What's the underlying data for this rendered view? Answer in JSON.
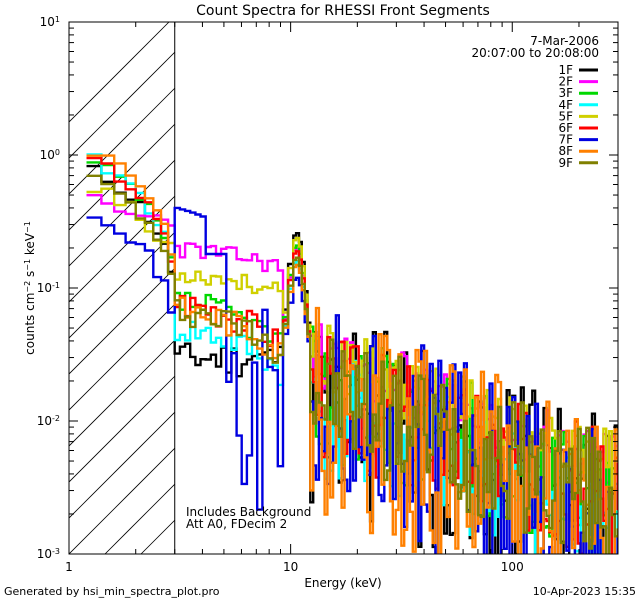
{
  "chart_data": {
    "type": "line",
    "title": "Count Spectra for RHESSI Front Segments",
    "xlabel": "Energy (keV)",
    "ylabel_html": "counts cm⁻² s⁻¹ keV⁻¹",
    "xlim": [
      1,
      300
    ],
    "ylim": [
      0.001,
      10
    ],
    "xscale": "log",
    "yscale": "log",
    "x_ticks": [
      {
        "v": 1,
        "label": "1"
      },
      {
        "v": 10,
        "label": "10"
      },
      {
        "v": 100,
        "label": "100"
      }
    ],
    "y_ticks": [
      {
        "v": 0.001,
        "base": "10",
        "exp": "-3"
      },
      {
        "v": 0.01,
        "base": "10",
        "exp": "-2"
      },
      {
        "v": 0.1,
        "base": "10",
        "exp": "-1"
      },
      {
        "v": 1,
        "base": "10",
        "exp": "0"
      },
      {
        "v": 10,
        "base": "10",
        "exp": "1"
      }
    ],
    "hatched_region_keV": [
      1,
      3
    ],
    "date": "7-Mar-2006",
    "time_range": "20:07:00 to 20:08:00",
    "note_lines": [
      "Includes Background",
      "Att A0, FDecim 2"
    ],
    "footer_left": "Generated by hsi_min_spectra_plot.pro",
    "footer_right": "10-Apr-2023 15:35",
    "series": [
      {
        "name": "1F",
        "color": "#000000",
        "seed": 11,
        "low": 0.75,
        "mid": 0.035,
        "peak": 0.23,
        "midshape": "drop",
        "tail": "noisy"
      },
      {
        "name": "2F",
        "color": "#ff00ff",
        "seed": 23,
        "low": 0.45,
        "mid": 0.2,
        "peak": 0.17,
        "midshape": "smooth",
        "tail": "high"
      },
      {
        "name": "3F",
        "color": "#00d800",
        "seed": 37,
        "low": 0.85,
        "mid": 0.08,
        "peak": 0.18,
        "midshape": "step",
        "tail": "mid"
      },
      {
        "name": "4F",
        "color": "#00ffff",
        "seed": 41,
        "low": 0.9,
        "mid": 0.05,
        "peak": 0.13,
        "midshape": "step",
        "tail": "lowend"
      },
      {
        "name": "5F",
        "color": "#d0d000",
        "seed": 53,
        "low": 0.6,
        "mid": 0.13,
        "peak": 0.21,
        "midshape": "smooth",
        "tail": "high"
      },
      {
        "name": "6F",
        "color": "#ff0000",
        "seed": 67,
        "low": 0.9,
        "mid": 0.08,
        "peak": 0.16,
        "midshape": "step",
        "tail": "mid"
      },
      {
        "name": "7F",
        "color": "#0000e0",
        "seed": 71,
        "low": 0.38,
        "mid": 0.45,
        "peak": 0.09,
        "midshape": "blue",
        "tail": "noisy"
      },
      {
        "name": "8F",
        "color": "#ff8000",
        "seed": 83,
        "low": 1.1,
        "mid": 0.07,
        "peak": 0.12,
        "midshape": "step",
        "tail": "noisy"
      },
      {
        "name": "9F",
        "color": "#808000",
        "seed": 97,
        "low": 0.65,
        "mid": 0.07,
        "peak": 0.14,
        "midshape": "step",
        "tail": "mid"
      }
    ]
  }
}
